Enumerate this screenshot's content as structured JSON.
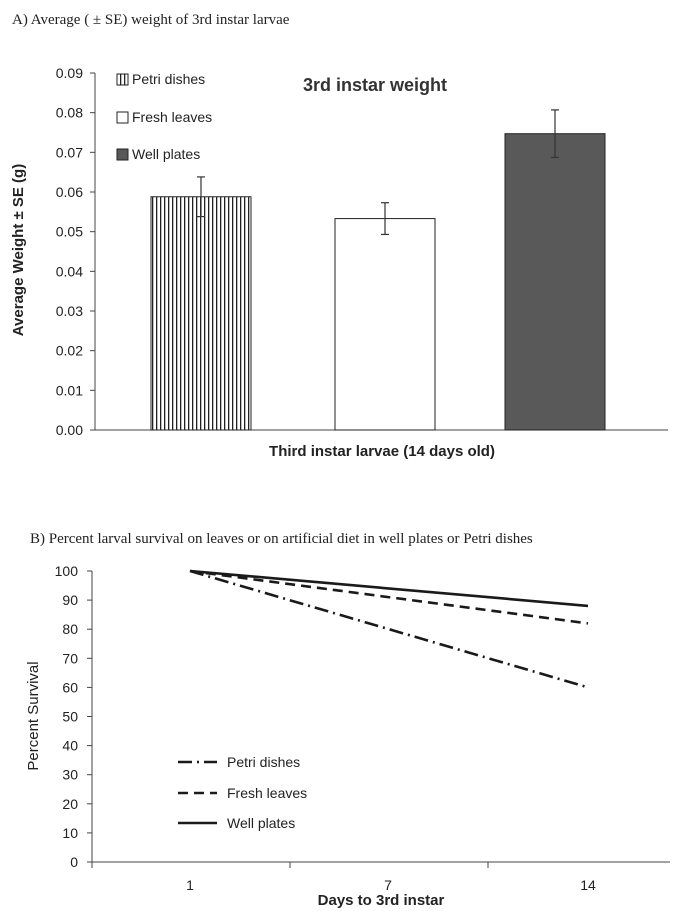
{
  "panel_a_caption": "A) Average ( ± SE) weight of 3rd instar larvae",
  "panel_b_caption": "B) Percent larval survival on leaves or on artificial diet in well plates or Petri dishes",
  "chart_data": [
    {
      "type": "bar",
      "title": "3rd instar weight",
      "xlabel": "Third instar larvae (14 days old)",
      "ylabel": "Average Weight ± SE (g)",
      "ylim": [
        0,
        0.09
      ],
      "yticks": [
        "0.00",
        "0.01",
        "0.02",
        "0.03",
        "0.04",
        "0.05",
        "0.06",
        "0.07",
        "0.08",
        "0.09"
      ],
      "legend_position": "top-left",
      "series": [
        {
          "name": "Petri dishes",
          "value": 0.0588,
          "se": 0.005,
          "fill": "vertical-hatch",
          "color": "#222222"
        },
        {
          "name": "Fresh leaves",
          "value": 0.0533,
          "se": 0.004,
          "fill": "white",
          "color": "#222222"
        },
        {
          "name": "Well plates",
          "value": 0.0747,
          "se": 0.006,
          "fill": "solid",
          "color": "#595959"
        }
      ]
    },
    {
      "type": "line",
      "xlabel": "Days to 3rd instar",
      "ylabel": "Percent  Survival",
      "categories": [
        "1",
        "7",
        "14"
      ],
      "ylim": [
        0,
        100
      ],
      "yticks": [
        "0",
        "10",
        "20",
        "30",
        "40",
        "50",
        "60",
        "70",
        "80",
        "90",
        "100"
      ],
      "legend_position": "bottom-left",
      "series": [
        {
          "name": "Petri dishes",
          "values": [
            100,
            null,
            60
          ],
          "style": "dash-dot"
        },
        {
          "name": "Fresh leaves",
          "values": [
            100,
            null,
            82
          ],
          "style": "dashed"
        },
        {
          "name": "Well plates",
          "values": [
            100,
            null,
            88
          ],
          "style": "solid"
        }
      ]
    }
  ]
}
